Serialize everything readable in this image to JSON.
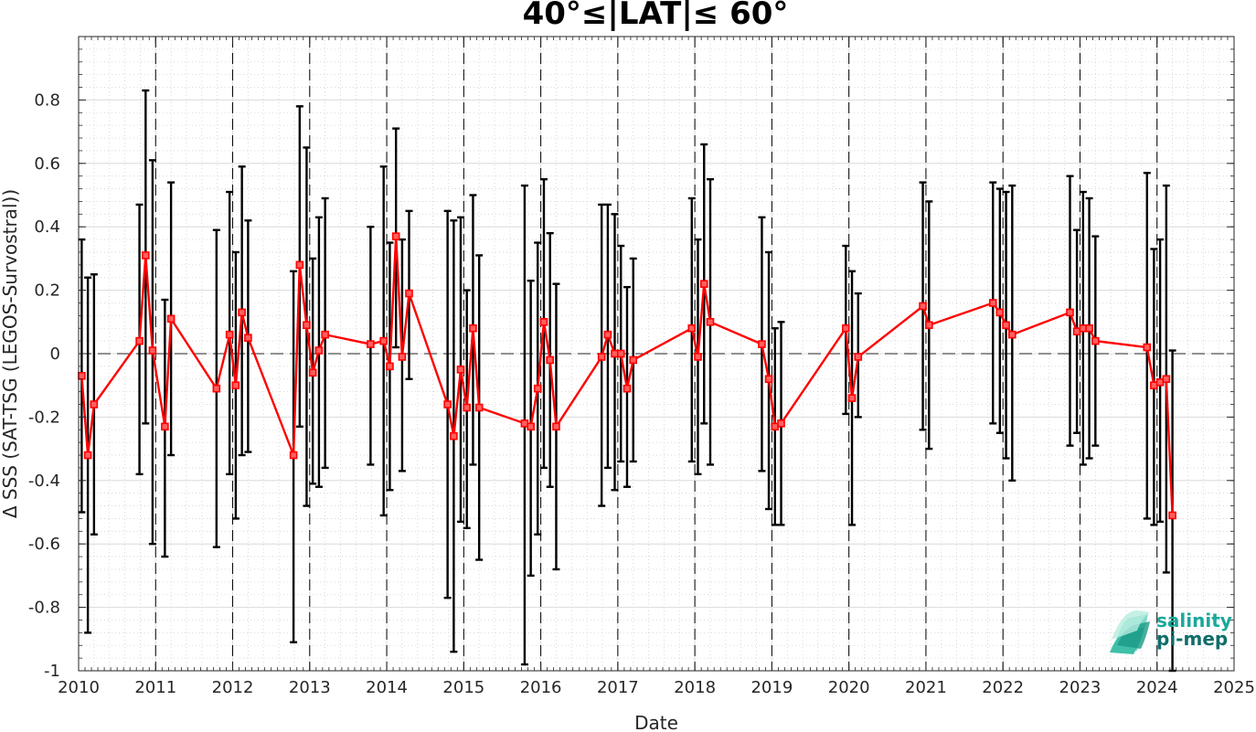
{
  "chart_data": {
    "type": "line",
    "title": "40°≤|LAT|≤ 60°",
    "xlabel": "Date",
    "ylabel": "Δ SSS (SAT-TSG (LEGOS-Survostral))",
    "xlim": [
      2010,
      2025
    ],
    "ylim": [
      -1,
      1
    ],
    "x_ticks": [
      "2010",
      "2011",
      "2012",
      "2013",
      "2014",
      "2015",
      "2016",
      "2017",
      "2018",
      "2019",
      "2020",
      "2021",
      "2022",
      "2023",
      "2024",
      "2025"
    ],
    "y_ticks": [
      "-1",
      "-0.8",
      "-0.6",
      "-0.4",
      "-0.2",
      "0",
      "0.2",
      "0.4",
      "0.6",
      "0.8"
    ],
    "y_tick_values": [
      -1,
      -0.8,
      -0.6,
      -0.4,
      -0.2,
      0,
      0.2,
      0.4,
      0.6,
      0.8
    ],
    "grid": "minor dotted",
    "year_boundaries": "dashed vertical lines at each January",
    "zero_line": "dashed horizontal at 0",
    "series": [
      {
        "color": "#ff0000",
        "errorbar_color": "#000000",
        "points": [
          {
            "x": 2010.04,
            "y": -0.07,
            "lo": -0.5,
            "hi": 0.36
          },
          {
            "x": 2010.12,
            "y": -0.32,
            "lo": -0.88,
            "hi": 0.24
          },
          {
            "x": 2010.2,
            "y": -0.16,
            "lo": -0.57,
            "hi": 0.25
          },
          {
            "x": 2010.79,
            "y": 0.04,
            "lo": -0.38,
            "hi": 0.47
          },
          {
            "x": 2010.87,
            "y": 0.31,
            "lo": -0.22,
            "hi": 0.83
          },
          {
            "x": 2010.96,
            "y": 0.01,
            "lo": -0.6,
            "hi": 0.61
          },
          {
            "x": 2011.12,
            "y": -0.23,
            "lo": -0.64,
            "hi": 0.17
          },
          {
            "x": 2011.2,
            "y": 0.11,
            "lo": -0.32,
            "hi": 0.54
          },
          {
            "x": 2011.79,
            "y": -0.11,
            "lo": -0.61,
            "hi": 0.39
          },
          {
            "x": 2011.96,
            "y": 0.06,
            "lo": -0.38,
            "hi": 0.51
          },
          {
            "x": 2012.04,
            "y": -0.1,
            "lo": -0.52,
            "hi": 0.32
          },
          {
            "x": 2012.12,
            "y": 0.13,
            "lo": -0.32,
            "hi": 0.59
          },
          {
            "x": 2012.2,
            "y": 0.05,
            "lo": -0.31,
            "hi": 0.42
          },
          {
            "x": 2012.79,
            "y": -0.32,
            "lo": -0.91,
            "hi": 0.26
          },
          {
            "x": 2012.87,
            "y": 0.28,
            "lo": -0.23,
            "hi": 0.78
          },
          {
            "x": 2012.96,
            "y": 0.09,
            "lo": -0.48,
            "hi": 0.65
          },
          {
            "x": 2013.04,
            "y": -0.06,
            "lo": -0.41,
            "hi": 0.3
          },
          {
            "x": 2013.12,
            "y": 0.01,
            "lo": -0.42,
            "hi": 0.43
          },
          {
            "x": 2013.2,
            "y": 0.06,
            "lo": -0.36,
            "hi": 0.49
          },
          {
            "x": 2013.79,
            "y": 0.03,
            "lo": -0.35,
            "hi": 0.4
          },
          {
            "x": 2013.96,
            "y": 0.04,
            "lo": -0.51,
            "hi": 0.59
          },
          {
            "x": 2014.04,
            "y": -0.04,
            "lo": -0.43,
            "hi": 0.35
          },
          {
            "x": 2014.12,
            "y": 0.37,
            "lo": 0.02,
            "hi": 0.71
          },
          {
            "x": 2014.2,
            "y": -0.01,
            "lo": -0.37,
            "hi": 0.36
          },
          {
            "x": 2014.29,
            "y": 0.19,
            "lo": -0.08,
            "hi": 0.45
          },
          {
            "x": 2014.79,
            "y": -0.16,
            "lo": -0.77,
            "hi": 0.45
          },
          {
            "x": 2014.87,
            "y": -0.26,
            "lo": -0.94,
            "hi": 0.42
          },
          {
            "x": 2014.96,
            "y": -0.05,
            "lo": -0.53,
            "hi": 0.43
          },
          {
            "x": 2015.04,
            "y": -0.17,
            "lo": -0.55,
            "hi": 0.2
          },
          {
            "x": 2015.12,
            "y": 0.08,
            "lo": -0.35,
            "hi": 0.5
          },
          {
            "x": 2015.2,
            "y": -0.17,
            "lo": -0.65,
            "hi": 0.31
          },
          {
            "x": 2015.79,
            "y": -0.22,
            "lo": -0.98,
            "hi": 0.53
          },
          {
            "x": 2015.87,
            "y": -0.23,
            "lo": -0.7,
            "hi": 0.23
          },
          {
            "x": 2015.96,
            "y": -0.11,
            "lo": -0.57,
            "hi": 0.35
          },
          {
            "x": 2016.04,
            "y": 0.1,
            "lo": -0.36,
            "hi": 0.55
          },
          {
            "x": 2016.12,
            "y": -0.02,
            "lo": -0.42,
            "hi": 0.38
          },
          {
            "x": 2016.2,
            "y": -0.23,
            "lo": -0.68,
            "hi": 0.22
          },
          {
            "x": 2016.79,
            "y": -0.01,
            "lo": -0.48,
            "hi": 0.47
          },
          {
            "x": 2016.87,
            "y": 0.06,
            "lo": -0.36,
            "hi": 0.47
          },
          {
            "x": 2016.96,
            "y": 0.0,
            "lo": -0.43,
            "hi": 0.44
          },
          {
            "x": 2017.04,
            "y": 0.0,
            "lo": -0.34,
            "hi": 0.34
          },
          {
            "x": 2017.12,
            "y": -0.11,
            "lo": -0.42,
            "hi": 0.21
          },
          {
            "x": 2017.2,
            "y": -0.02,
            "lo": -0.34,
            "hi": 0.3
          },
          {
            "x": 2017.96,
            "y": 0.08,
            "lo": -0.34,
            "hi": 0.49
          },
          {
            "x": 2018.04,
            "y": -0.01,
            "lo": -0.38,
            "hi": 0.36
          },
          {
            "x": 2018.12,
            "y": 0.22,
            "lo": -0.22,
            "hi": 0.66
          },
          {
            "x": 2018.2,
            "y": 0.1,
            "lo": -0.35,
            "hi": 0.55
          },
          {
            "x": 2018.87,
            "y": 0.03,
            "lo": -0.37,
            "hi": 0.43
          },
          {
            "x": 2018.96,
            "y": -0.08,
            "lo": -0.49,
            "hi": 0.32
          },
          {
            "x": 2019.04,
            "y": -0.23,
            "lo": -0.54,
            "hi": 0.08
          },
          {
            "x": 2019.12,
            "y": -0.22,
            "lo": -0.54,
            "hi": 0.1
          },
          {
            "x": 2019.96,
            "y": 0.08,
            "lo": -0.19,
            "hi": 0.34
          },
          {
            "x": 2020.04,
            "y": -0.14,
            "lo": -0.54,
            "hi": 0.26
          },
          {
            "x": 2020.12,
            "y": -0.01,
            "lo": -0.2,
            "hi": 0.19
          },
          {
            "x": 2020.96,
            "y": 0.15,
            "lo": -0.24,
            "hi": 0.54
          },
          {
            "x": 2021.04,
            "y": 0.09,
            "lo": -0.3,
            "hi": 0.48
          },
          {
            "x": 2021.87,
            "y": 0.16,
            "lo": -0.22,
            "hi": 0.54
          },
          {
            "x": 2021.96,
            "y": 0.13,
            "lo": -0.25,
            "hi": 0.52
          },
          {
            "x": 2022.04,
            "y": 0.09,
            "lo": -0.33,
            "hi": 0.51
          },
          {
            "x": 2022.12,
            "y": 0.06,
            "lo": -0.4,
            "hi": 0.53
          },
          {
            "x": 2022.87,
            "y": 0.13,
            "lo": -0.29,
            "hi": 0.56
          },
          {
            "x": 2022.96,
            "y": 0.07,
            "lo": -0.25,
            "hi": 0.39
          },
          {
            "x": 2023.04,
            "y": 0.08,
            "lo": -0.35,
            "hi": 0.51
          },
          {
            "x": 2023.12,
            "y": 0.08,
            "lo": -0.33,
            "hi": 0.49
          },
          {
            "x": 2023.2,
            "y": 0.04,
            "lo": -0.29,
            "hi": 0.37
          },
          {
            "x": 2023.87,
            "y": 0.02,
            "lo": -0.52,
            "hi": 0.57
          },
          {
            "x": 2023.96,
            "y": -0.1,
            "lo": -0.54,
            "hi": 0.33
          },
          {
            "x": 2024.04,
            "y": -0.09,
            "lo": -0.53,
            "hi": 0.36
          },
          {
            "x": 2024.12,
            "y": -0.08,
            "lo": -0.69,
            "hi": 0.53
          },
          {
            "x": 2024.2,
            "y": -0.51,
            "lo": -1.0,
            "hi": 0.01
          }
        ]
      }
    ]
  },
  "logo": {
    "line1": "salinity",
    "line2": "pi-mep",
    "color1": "#1aa89a",
    "color2": "#0f6e6a"
  }
}
